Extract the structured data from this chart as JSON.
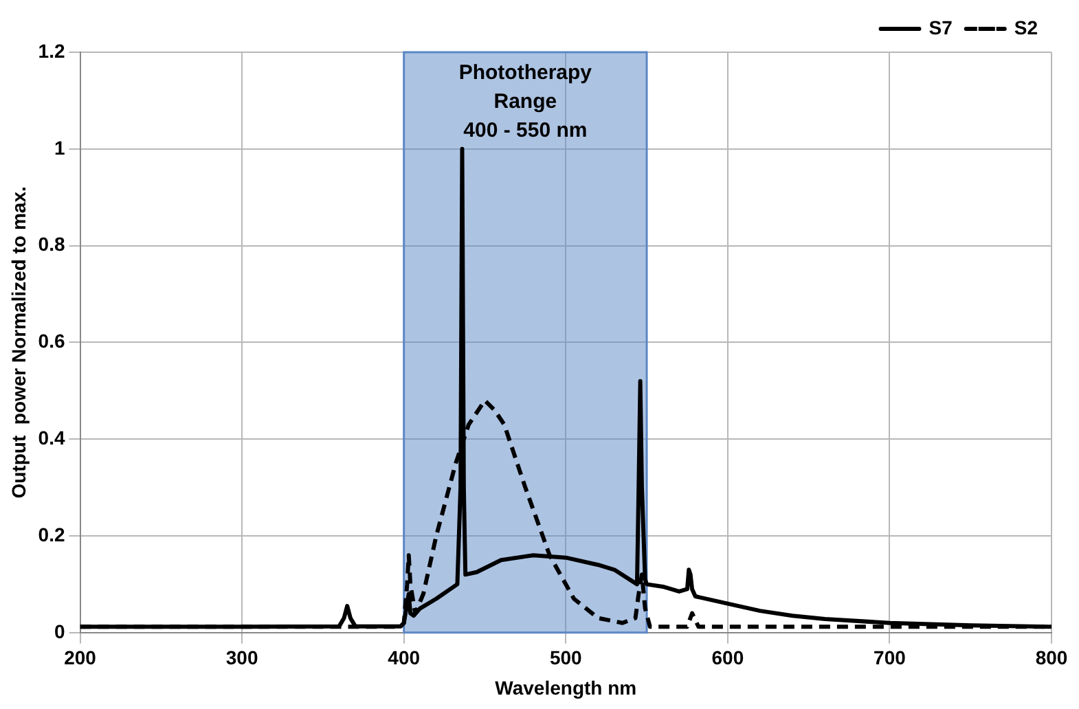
{
  "chart_data": {
    "type": "line",
    "xlabel": "Wavelength nm",
    "ylabel": "Output  power Normalized to max.",
    "xlim": [
      200,
      800
    ],
    "xticks": [
      200,
      300,
      400,
      500,
      600,
      700,
      800
    ],
    "ylim": [
      0,
      1.2
    ],
    "yticks": [
      0,
      0.2,
      0.4,
      0.6,
      0.8,
      1,
      1.2
    ],
    "grid": true,
    "legend": "top right",
    "marker": "none",
    "bands": [
      {
        "axis": "x",
        "from": 400,
        "to": 550,
        "label": "Phototherapy\nRange\n400 - 550 nm",
        "color": "#5b87c5"
      }
    ],
    "series": [
      {
        "name": "S7",
        "color": "#000000",
        "line_style": "solid",
        "x": [
          200,
          300,
          360,
          363,
          365,
          367,
          370,
          398,
          400,
          402,
          403,
          404,
          406,
          410,
          420,
          433,
          435,
          436,
          437,
          438,
          445,
          460,
          480,
          500,
          520,
          530,
          544,
          545,
          546,
          547,
          549,
          550,
          560,
          570,
          575,
          576,
          577,
          578,
          580,
          600,
          620,
          640,
          660,
          700,
          750,
          800
        ],
        "values": [
          0.012,
          0.012,
          0.013,
          0.03,
          0.055,
          0.03,
          0.013,
          0.013,
          0.02,
          0.06,
          0.08,
          0.04,
          0.035,
          0.05,
          0.07,
          0.1,
          0.3,
          1.0,
          0.3,
          0.12,
          0.125,
          0.15,
          0.16,
          0.155,
          0.14,
          0.13,
          0.1,
          0.3,
          0.52,
          0.3,
          0.11,
          0.1,
          0.095,
          0.085,
          0.09,
          0.13,
          0.12,
          0.09,
          0.075,
          0.06,
          0.045,
          0.035,
          0.028,
          0.02,
          0.015,
          0.012
        ]
      },
      {
        "name": "S2",
        "color": "#000000",
        "line_style": "dashed",
        "x": [
          200,
          398,
          400,
          402,
          403,
          404,
          407,
          412,
          420,
          432,
          440,
          450,
          456,
          462,
          475,
          490,
          505,
          520,
          535,
          543,
          545,
          547,
          549,
          552,
          575,
          578,
          582,
          800
        ],
        "values": [
          0.012,
          0.012,
          0.02,
          0.1,
          0.16,
          0.1,
          0.04,
          0.08,
          0.2,
          0.35,
          0.43,
          0.48,
          0.46,
          0.43,
          0.3,
          0.16,
          0.07,
          0.03,
          0.02,
          0.03,
          0.08,
          0.12,
          0.05,
          0.012,
          0.012,
          0.04,
          0.012,
          0.012
        ]
      }
    ]
  }
}
